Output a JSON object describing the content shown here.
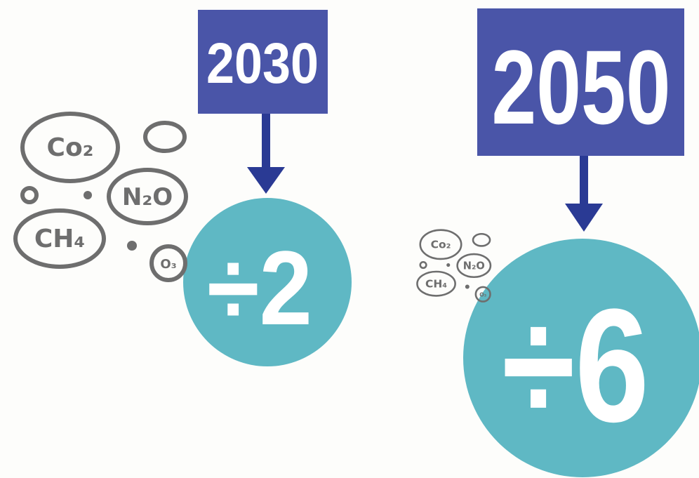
{
  "panels": [
    {
      "year": "2030",
      "factor": "÷2",
      "gases": [
        "Co₂",
        "N₂O",
        "CH₄",
        "O₃"
      ]
    },
    {
      "year": "2050",
      "factor": "÷6",
      "gases": [
        "Co₂",
        "N₂O",
        "CH₄",
        "O₃"
      ]
    }
  ]
}
